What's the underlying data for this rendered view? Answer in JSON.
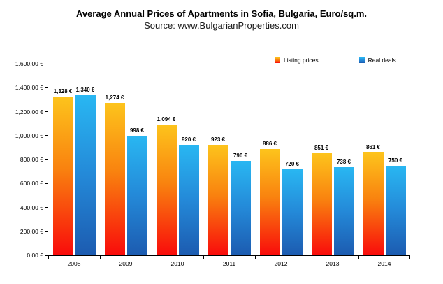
{
  "title": "Average Annual Prices of Apartments in Sofia, Bulgaria, Euro/sq.m.",
  "subtitle": "Source: www.BulgarianProperties.com",
  "chart_data": {
    "type": "bar",
    "categories": [
      "2008",
      "2009",
      "2010",
      "2011",
      "2012",
      "2013",
      "2014"
    ],
    "series": [
      {
        "name": "Listing prices",
        "values": [
          1328,
          1274,
          1094,
          923,
          886,
          851,
          861
        ],
        "data_labels": [
          "1,328 €",
          "1,274 €",
          "1,094 €",
          "923 €",
          "886 €",
          "851 €",
          "861 €"
        ],
        "color_top": "#FDC41C",
        "color_mid": "#F9830F",
        "color_bottom": "#F90B0B"
      },
      {
        "name": "Real deals",
        "values": [
          1340,
          998,
          920,
          790,
          720,
          738,
          750
        ],
        "data_labels": [
          "1,340 €",
          "998 €",
          "920 €",
          "790 €",
          "720 €",
          "738 €",
          "750 €"
        ],
        "color_top": "#29B7F2",
        "color_mid": "#2489D8",
        "color_bottom": "#1C5BB0"
      }
    ],
    "xlabel": "",
    "ylabel": "",
    "ylim": [
      0,
      1600
    ],
    "ytick_step": 200,
    "ytick_labels": [
      "0.00 €",
      "200.00 €",
      "400.00 €",
      "600.00 €",
      "800.00 €",
      "1,000.00 €",
      "1,200.00 €",
      "1,400.00 €",
      "1,600.00 €"
    ],
    "grid": false,
    "legend_position": "top-right",
    "axis_color": "#000000",
    "background_color": "#ffffff"
  }
}
